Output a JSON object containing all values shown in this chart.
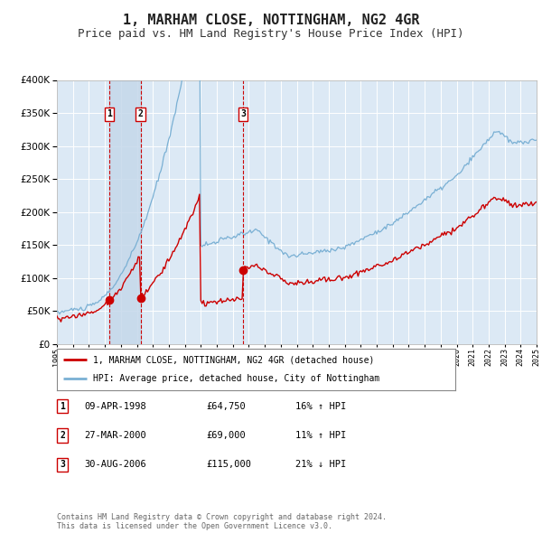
{
  "title": "1, MARHAM CLOSE, NOTTINGHAM, NG2 4GR",
  "subtitle": "Price paid vs. HM Land Registry's House Price Index (HPI)",
  "title_fontsize": 11,
  "subtitle_fontsize": 9,
  "background_color": "#ffffff",
  "plot_bg_color": "#dce9f5",
  "grid_color": "#ffffff",
  "red_line_color": "#cc0000",
  "blue_line_color": "#7ab0d4",
  "sale_dot_color": "#cc0000",
  "dashed_line_color": "#cc0000",
  "shade_color": "#c5d8ea",
  "legend_line1": "1, MARHAM CLOSE, NOTTINGHAM, NG2 4GR (detached house)",
  "legend_line2": "HPI: Average price, detached house, City of Nottingham",
  "footer": "Contains HM Land Registry data © Crown copyright and database right 2024.\nThis data is licensed under the Open Government Licence v3.0.",
  "table_rows": [
    {
      "num": "1",
      "date": "09-APR-1998",
      "price": "£64,750",
      "hpi": "16% ↑ HPI"
    },
    {
      "num": "2",
      "date": "27-MAR-2000",
      "price": "£69,000",
      "hpi": "11% ↑ HPI"
    },
    {
      "num": "3",
      "date": "30-AUG-2006",
      "price": "£115,000",
      "hpi": "21% ↓ HPI"
    }
  ],
  "sales": [
    {
      "year": 1998.27,
      "price": 64750,
      "label": "1"
    },
    {
      "year": 2000.23,
      "price": 69000,
      "label": "2"
    },
    {
      "year": 2006.66,
      "price": 115000,
      "label": "3"
    }
  ],
  "ylim": [
    0,
    400000
  ],
  "yticks": [
    0,
    50000,
    100000,
    150000,
    200000,
    250000,
    300000,
    350000,
    400000
  ],
  "year_start": 1995,
  "year_end": 2025
}
